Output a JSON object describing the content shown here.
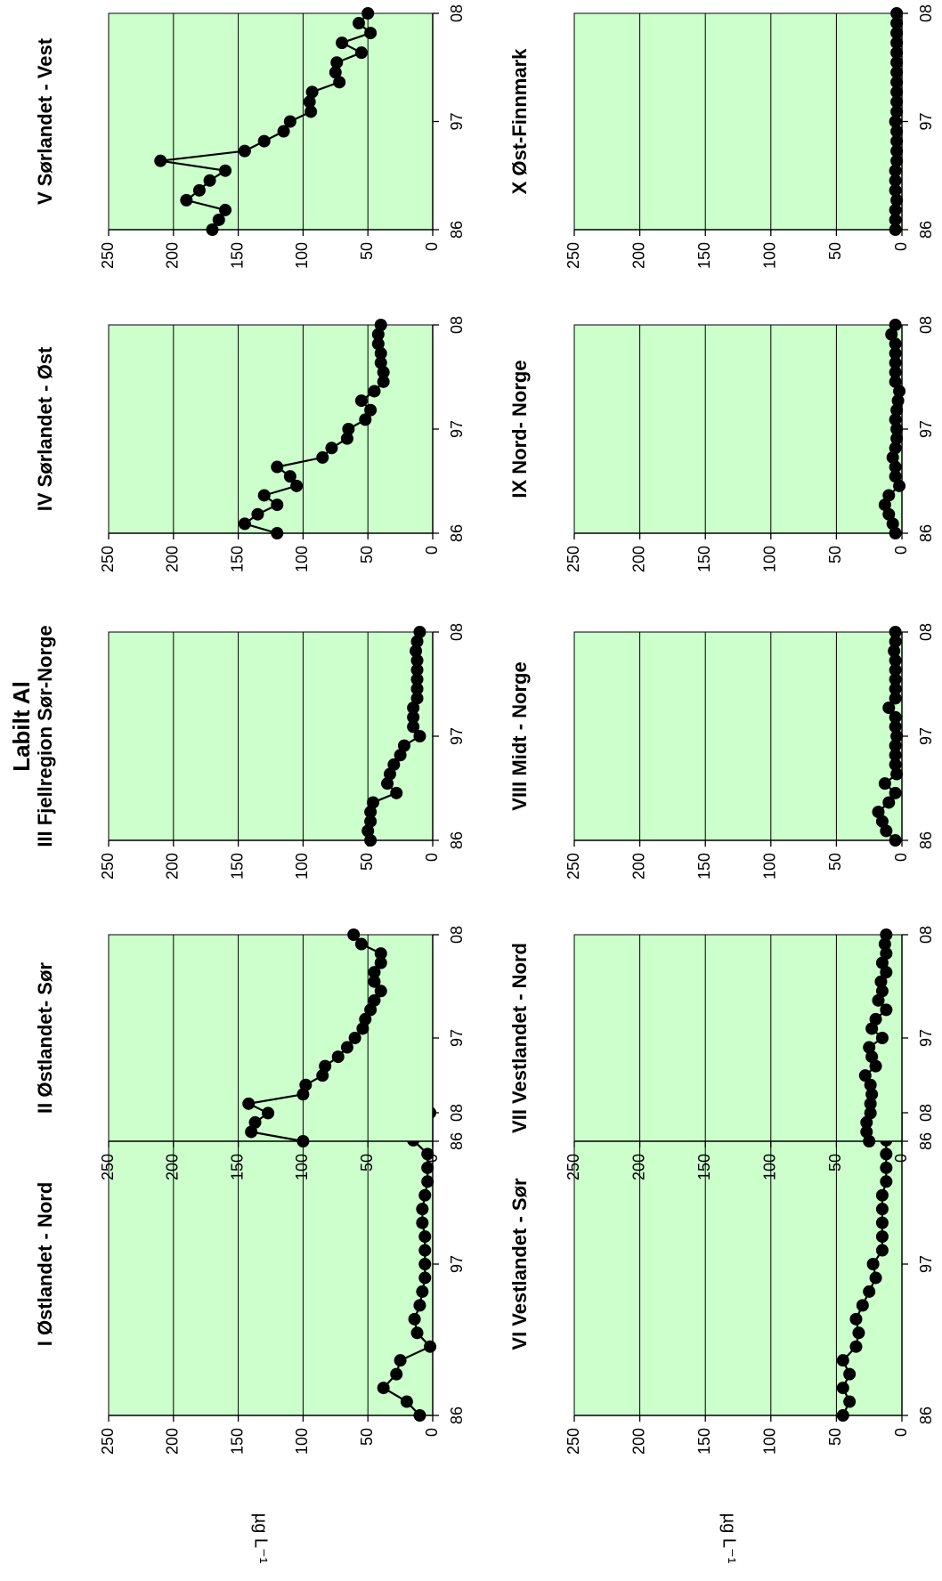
{
  "main_title": "Labilt Al",
  "y_axis_label": "µg L⁻¹",
  "colors": {
    "plot_bg": "#ccffcc",
    "grid": "#000000",
    "line": "#000000",
    "marker": "#000000"
  },
  "chart_data": [
    {
      "type": "line",
      "title": "I Østlandet - Nord",
      "xticks": [
        "86",
        "97",
        "08"
      ],
      "yticks": [
        0,
        50,
        100,
        150,
        200,
        250
      ],
      "xlim": [
        1986,
        2008
      ],
      "ylim": [
        0,
        250
      ],
      "x": [
        1986,
        1987,
        1988,
        1989,
        1990,
        1991,
        1992,
        1993,
        1994,
        1995,
        1996,
        1997,
        1998,
        1999,
        2000,
        2001,
        2002,
        2003,
        2004,
        2005,
        2006,
        2007,
        2008
      ],
      "values": [
        10,
        20,
        38,
        28,
        25,
        2,
        12,
        14,
        10,
        8,
        6,
        6,
        6,
        6,
        8,
        8,
        6,
        4,
        4,
        4,
        15,
        6,
        2
      ]
    },
    {
      "type": "line",
      "title": "II Østlandet- Sør",
      "xticks": [
        "86",
        "97",
        "08"
      ],
      "yticks": [
        0,
        50,
        100,
        150,
        200,
        250
      ],
      "xlim": [
        1986,
        2008
      ],
      "ylim": [
        0,
        250
      ],
      "x": [
        1986,
        1987,
        1988,
        1989,
        1990,
        1991,
        1992,
        1993,
        1994,
        1995,
        1996,
        1997,
        1998,
        1999,
        2000,
        2001,
        2002,
        2003,
        2004,
        2005,
        2006,
        2007,
        2008
      ],
      "values": [
        100,
        140,
        137,
        127,
        142,
        100,
        98,
        85,
        83,
        73,
        66,
        60,
        54,
        52,
        48,
        45,
        40,
        45,
        45,
        40,
        40,
        55,
        61
      ]
    },
    {
      "type": "line",
      "title": "III Fjellregion Sør-Norge",
      "xticks": [
        "86",
        "97",
        "08"
      ],
      "yticks": [
        0,
        50,
        100,
        150,
        200,
        250
      ],
      "xlim": [
        1986,
        2008
      ],
      "ylim": [
        0,
        250
      ],
      "x": [
        1986,
        1987,
        1988,
        1989,
        1990,
        1991,
        1992,
        1993,
        1994,
        1995,
        1996,
        1997,
        1998,
        1999,
        2000,
        2001,
        2002,
        2003,
        2004,
        2005,
        2006,
        2007,
        2008
      ],
      "values": [
        48,
        50,
        48,
        48,
        46,
        28,
        35,
        33,
        30,
        25,
        22,
        10,
        15,
        15,
        15,
        12,
        12,
        12,
        12,
        12,
        13,
        12,
        10
      ]
    },
    {
      "type": "line",
      "title": "IV Sørlandet - Øst",
      "xticks": [
        "86",
        "97",
        "08"
      ],
      "yticks": [
        0,
        50,
        100,
        150,
        200,
        250
      ],
      "xlim": [
        1986,
        2008
      ],
      "ylim": [
        0,
        250
      ],
      "x": [
        1986,
        1987,
        1988,
        1989,
        1990,
        1991,
        1992,
        1993,
        1994,
        1995,
        1996,
        1997,
        1998,
        1999,
        2000,
        2001,
        2002,
        2003,
        2004,
        2005,
        2006,
        2007,
        2008
      ],
      "values": [
        120,
        145,
        135,
        120,
        130,
        105,
        110,
        120,
        85,
        78,
        66,
        65,
        52,
        48,
        55,
        45,
        38,
        38,
        40,
        40,
        42,
        42,
        40
      ]
    },
    {
      "type": "line",
      "title": "V Sørlandet - Vest",
      "xticks": [
        "86",
        "97",
        "08"
      ],
      "yticks": [
        0,
        50,
        100,
        150,
        200,
        250
      ],
      "xlim": [
        1986,
        2008
      ],
      "ylim": [
        0,
        250
      ],
      "x": [
        1986,
        1987,
        1988,
        1989,
        1990,
        1991,
        1992,
        1993,
        1994,
        1995,
        1996,
        1997,
        1998,
        1999,
        2000,
        2001,
        2002,
        2003,
        2004,
        2005,
        2006,
        2007,
        2008
      ],
      "values": [
        170,
        165,
        160,
        190,
        180,
        172,
        160,
        210,
        145,
        130,
        115,
        110,
        94,
        95,
        93,
        72,
        75,
        74,
        55,
        70,
        48,
        57,
        50
      ]
    },
    {
      "type": "line",
      "title": "VI Vestlandet - Sør",
      "xticks": [
        "86",
        "97",
        "08"
      ],
      "yticks": [
        0,
        50,
        100,
        150,
        200,
        250
      ],
      "xlim": [
        1986,
        2008
      ],
      "ylim": [
        0,
        250
      ],
      "x": [
        1986,
        1987,
        1988,
        1989,
        1990,
        1991,
        1992,
        1993,
        1994,
        1995,
        1996,
        1997,
        1998,
        1999,
        2000,
        2001,
        2002,
        2003,
        2004,
        2005,
        2006,
        2007,
        2008
      ],
      "values": [
        45,
        40,
        45,
        40,
        45,
        35,
        33,
        35,
        30,
        25,
        20,
        22,
        15,
        15,
        15,
        15,
        15,
        12,
        12,
        12,
        12,
        10,
        10
      ]
    },
    {
      "type": "line",
      "title": "VII Vestlandet - Nord",
      "xticks": [
        "86",
        "97",
        "08"
      ],
      "yticks": [
        0,
        50,
        100,
        150,
        200,
        250
      ],
      "xlim": [
        1986,
        2008
      ],
      "ylim": [
        0,
        250
      ],
      "x": [
        1986,
        1987,
        1988,
        1989,
        1990,
        1991,
        1992,
        1993,
        1994,
        1995,
        1996,
        1997,
        1998,
        1999,
        2000,
        2001,
        2002,
        2003,
        2004,
        2005,
        2006,
        2007,
        2008
      ],
      "values": [
        25,
        27,
        27,
        24,
        24,
        23,
        24,
        28,
        20,
        23,
        25,
        15,
        23,
        20,
        12,
        18,
        15,
        16,
        12,
        15,
        12,
        13,
        12
      ]
    },
    {
      "type": "line",
      "title": "VIII Midt - Norge",
      "xticks": [
        "86",
        "97",
        "08"
      ],
      "yticks": [
        0,
        50,
        100,
        150,
        200,
        250
      ],
      "xlim": [
        1986,
        2008
      ],
      "ylim": [
        0,
        250
      ],
      "x": [
        1986,
        1987,
        1988,
        1989,
        1990,
        1991,
        1992,
        1993,
        1994,
        1995,
        1996,
        1997,
        1998,
        1999,
        2000,
        2001,
        2002,
        2003,
        2004,
        2005,
        2006,
        2007,
        2008
      ],
      "values": [
        5,
        12,
        15,
        18,
        10,
        5,
        13,
        4,
        5,
        5,
        5,
        4,
        5,
        5,
        10,
        5,
        5,
        5,
        5,
        5,
        6,
        5,
        5
      ]
    },
    {
      "type": "line",
      "title": "IX Nord- Norge",
      "xticks": [
        "86",
        "97",
        "08"
      ],
      "yticks": [
        0,
        50,
        100,
        150,
        200,
        250
      ],
      "xlim": [
        1986,
        2008
      ],
      "ylim": [
        0,
        250
      ],
      "x": [
        1986,
        1987,
        1988,
        1989,
        1990,
        1991,
        1992,
        1993,
        1994,
        1995,
        1996,
        1997,
        1998,
        1999,
        2000,
        2001,
        2002,
        2003,
        2004,
        2005,
        2006,
        2007,
        2008
      ],
      "values": [
        5,
        7,
        10,
        13,
        10,
        2,
        5,
        5,
        7,
        5,
        4,
        4,
        5,
        4,
        3,
        2,
        5,
        5,
        5,
        5,
        5,
        8,
        5
      ]
    },
    {
      "type": "line",
      "title": "X Øst-Finnmark",
      "xticks": [
        "86",
        "97",
        "08"
      ],
      "yticks": [
        0,
        50,
        100,
        150,
        200,
        250
      ],
      "xlim": [
        1986,
        2008
      ],
      "ylim": [
        0,
        250
      ],
      "x": [
        1986,
        1987,
        1988,
        1989,
        1990,
        1991,
        1992,
        1993,
        1994,
        1995,
        1996,
        1997,
        1998,
        1999,
        2000,
        2001,
        2002,
        2003,
        2004,
        2005,
        2006,
        2007,
        2008
      ],
      "values": [
        5,
        5,
        5,
        4,
        5,
        5,
        5,
        4,
        4,
        4,
        4,
        5,
        4,
        4,
        4,
        4,
        4,
        4,
        4,
        4,
        4,
        4,
        4
      ]
    }
  ]
}
